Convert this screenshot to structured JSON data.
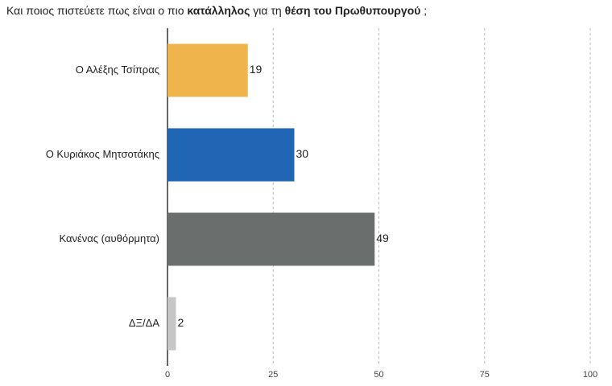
{
  "chart_data": {
    "type": "bar",
    "orientation": "horizontal",
    "title_parts": [
      {
        "text": "Και ποιος πιστεύετε πως είναι ο πιο ",
        "bold": false
      },
      {
        "text": "κατάλληλος",
        "bold": true
      },
      {
        "text": " για τη ",
        "bold": false
      },
      {
        "text": "θέση του Πρωθυπουργού",
        "bold": true
      },
      {
        "text": " ;",
        "bold": false
      }
    ],
    "categories": [
      "Ο Αλέξης Τσίπρας",
      "Ο Κυριάκος Μητσοτάκης",
      "Κανένας (αυθόρμητα)",
      "ΔΞ/ΔΑ"
    ],
    "values": [
      19,
      30,
      49,
      2
    ],
    "colors": [
      "#f0b44c",
      "#2166b5",
      "#6a6e6c",
      "#c6c6c6"
    ],
    "xlim": [
      0,
      100
    ],
    "xticks": [
      0,
      25,
      50,
      75,
      100
    ],
    "grid": true
  }
}
